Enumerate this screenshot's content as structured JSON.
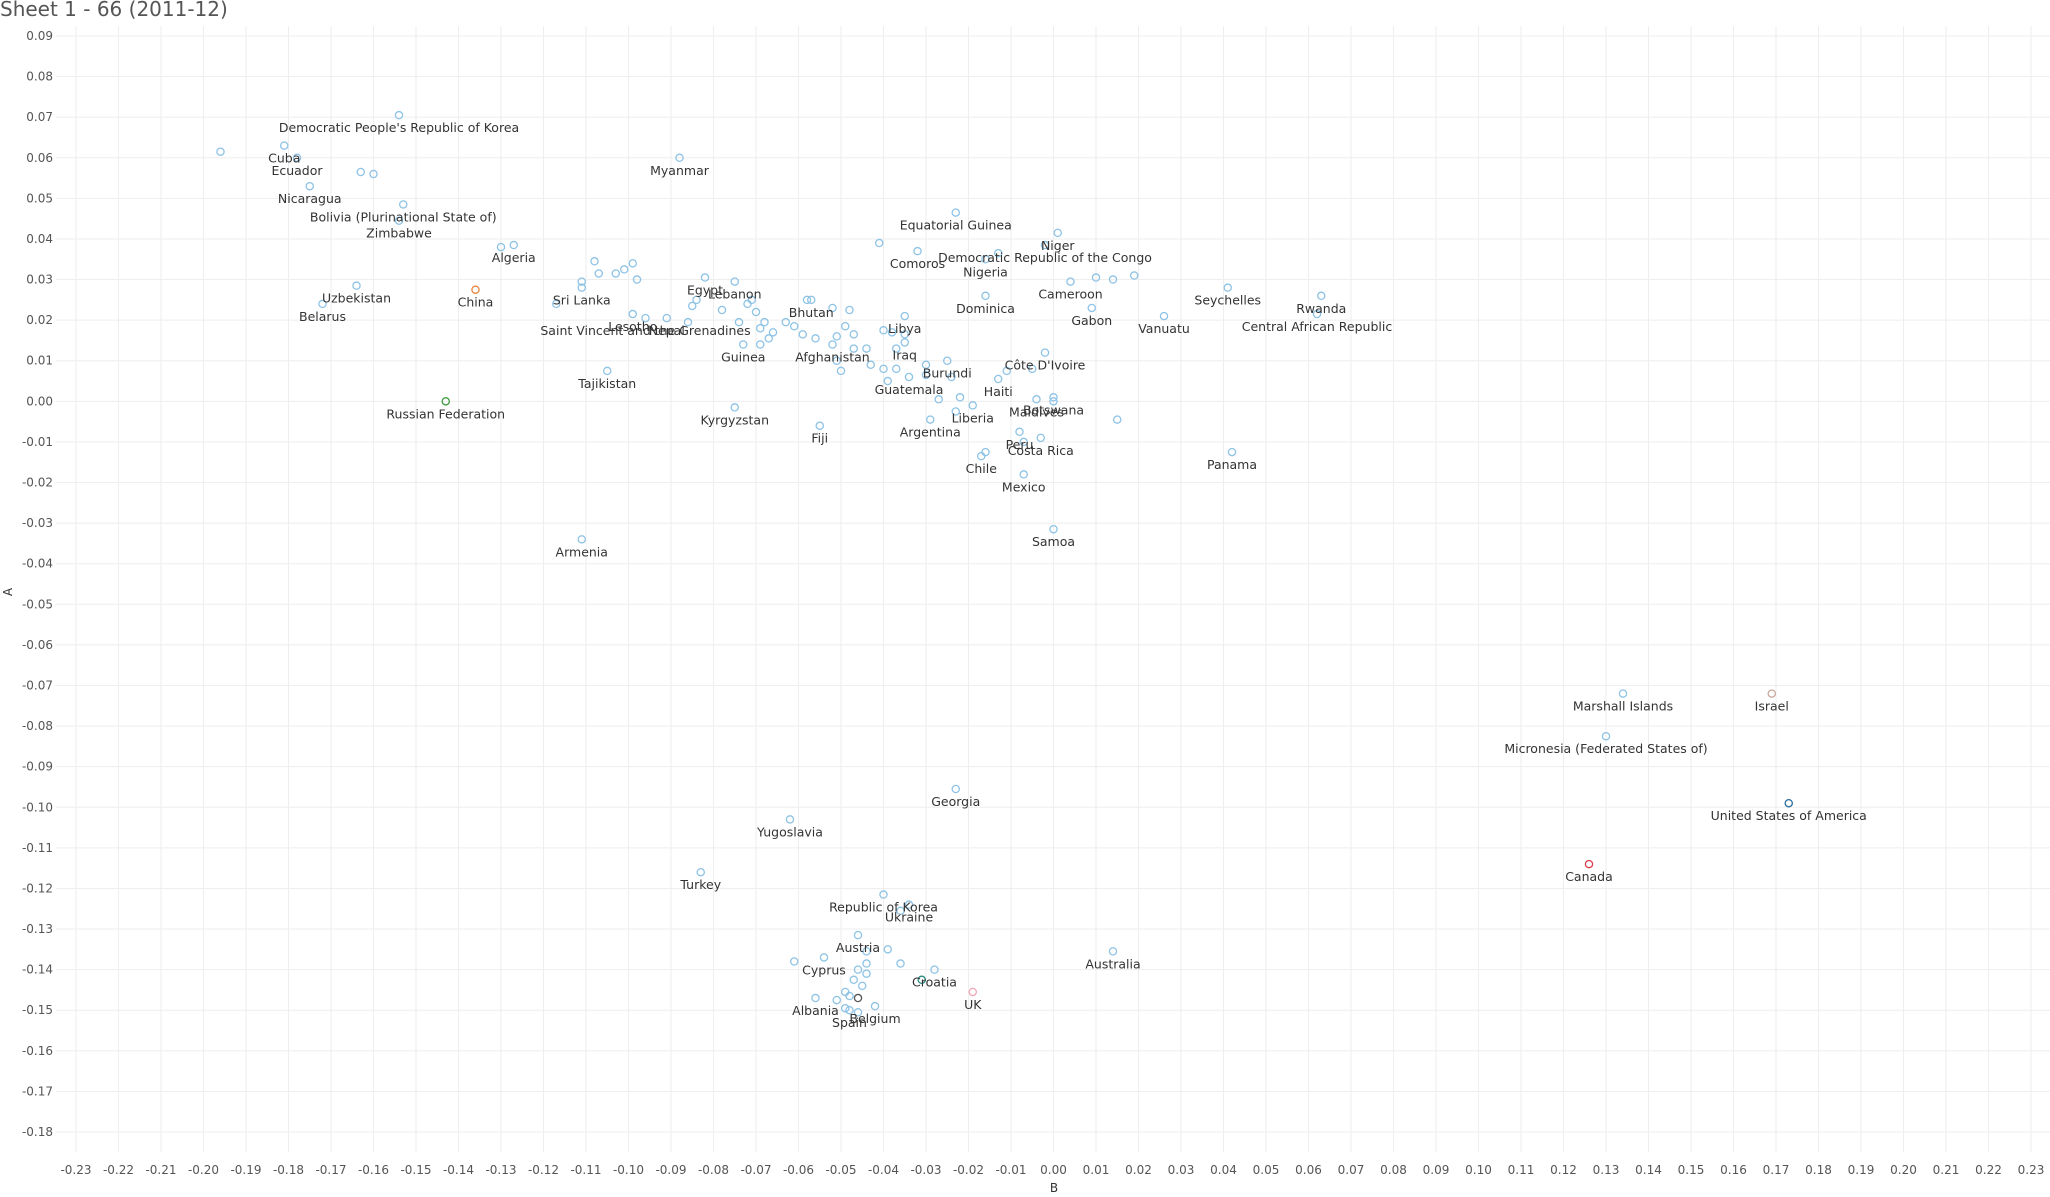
{
  "sheet": {
    "title": "Sheet 1 - 66 (2011-12)"
  },
  "chart_data": {
    "type": "scatter",
    "title": "Sheet 1 - 66 (2011-12)",
    "xlabel": "B",
    "ylabel": "A",
    "xlim": [
      -0.23,
      0.23
    ],
    "ylim": [
      -0.18,
      0.09
    ],
    "xstep": 0.01,
    "ystep": 0.01,
    "grid": true,
    "default_color": "#8ec3e6",
    "points": [
      {
        "label": "Democratic People's Republic of Korea",
        "x": -0.154,
        "y": 0.0705
      },
      {
        "label": "",
        "x": -0.196,
        "y": 0.0615
      },
      {
        "label": "Cuba",
        "x": -0.181,
        "y": 0.063
      },
      {
        "label": "Ecuador",
        "x": -0.178,
        "y": 0.06
      },
      {
        "label": "",
        "x": -0.163,
        "y": 0.0565
      },
      {
        "label": "",
        "x": -0.16,
        "y": 0.056
      },
      {
        "label": "Nicaragua",
        "x": -0.175,
        "y": 0.053
      },
      {
        "label": "Bolivia (Plurinational State of)",
        "x": -0.153,
        "y": 0.0485
      },
      {
        "label": "Zimbabwe",
        "x": -0.154,
        "y": 0.0445
      },
      {
        "label": "Myanmar",
        "x": -0.088,
        "y": 0.06
      },
      {
        "label": "Algeria",
        "x": -0.127,
        "y": 0.0385
      },
      {
        "label": "",
        "x": -0.13,
        "y": 0.038
      },
      {
        "label": "Uzbekistan",
        "x": -0.164,
        "y": 0.0285
      },
      {
        "label": "Belarus",
        "x": -0.172,
        "y": 0.024
      },
      {
        "label": "China",
        "x": -0.136,
        "y": 0.0275,
        "color": "#e8833a"
      },
      {
        "label": "Sri Lanka",
        "x": -0.111,
        "y": 0.028
      },
      {
        "label": "",
        "x": -0.108,
        "y": 0.0345
      },
      {
        "label": "",
        "x": -0.107,
        "y": 0.0315
      },
      {
        "label": "",
        "x": -0.111,
        "y": 0.0295
      },
      {
        "label": "",
        "x": -0.103,
        "y": 0.0315
      },
      {
        "label": "",
        "x": -0.101,
        "y": 0.0325
      },
      {
        "label": "",
        "x": -0.099,
        "y": 0.034
      },
      {
        "label": "",
        "x": -0.098,
        "y": 0.03
      },
      {
        "label": "",
        "x": -0.117,
        "y": 0.024
      },
      {
        "label": "Egypt",
        "x": -0.082,
        "y": 0.0305
      },
      {
        "label": "Lebanon",
        "x": -0.075,
        "y": 0.0295
      },
      {
        "label": "Lesotho",
        "x": -0.099,
        "y": 0.0215
      },
      {
        "label": "Saint Vincent and the Grenadines",
        "x": -0.096,
        "y": 0.0205
      },
      {
        "label": "Nepal",
        "x": -0.091,
        "y": 0.0205
      },
      {
        "label": "",
        "x": -0.085,
        "y": 0.0235
      },
      {
        "label": "",
        "x": -0.084,
        "y": 0.025
      },
      {
        "label": "",
        "x": -0.086,
        "y": 0.0195
      },
      {
        "label": "",
        "x": -0.078,
        "y": 0.0225
      },
      {
        "label": "",
        "x": -0.074,
        "y": 0.0195
      },
      {
        "label": "Bhutan",
        "x": -0.057,
        "y": 0.025
      },
      {
        "label": "",
        "x": -0.071,
        "y": 0.025
      },
      {
        "label": "",
        "x": -0.072,
        "y": 0.024
      },
      {
        "label": "",
        "x": -0.07,
        "y": 0.022
      },
      {
        "label": "",
        "x": -0.068,
        "y": 0.0195
      },
      {
        "label": "",
        "x": -0.069,
        "y": 0.018
      },
      {
        "label": "",
        "x": -0.066,
        "y": 0.017
      },
      {
        "label": "",
        "x": -0.067,
        "y": 0.0155
      },
      {
        "label": "Guinea",
        "x": -0.073,
        "y": 0.014
      },
      {
        "label": "",
        "x": -0.069,
        "y": 0.014
      },
      {
        "label": "",
        "x": -0.063,
        "y": 0.0195
      },
      {
        "label": "",
        "x": -0.061,
        "y": 0.0185
      },
      {
        "label": "",
        "x": -0.059,
        "y": 0.0165
      },
      {
        "label": "",
        "x": -0.056,
        "y": 0.0155
      },
      {
        "label": "",
        "x": -0.058,
        "y": 0.025
      },
      {
        "label": "Afghanistan",
        "x": -0.052,
        "y": 0.014
      },
      {
        "label": "",
        "x": -0.051,
        "y": 0.016
      },
      {
        "label": "",
        "x": -0.052,
        "y": 0.023
      },
      {
        "label": "",
        "x": -0.048,
        "y": 0.0225
      },
      {
        "label": "",
        "x": -0.049,
        "y": 0.0185
      },
      {
        "label": "",
        "x": -0.047,
        "y": 0.0165
      },
      {
        "label": "",
        "x": -0.047,
        "y": 0.013
      },
      {
        "label": "",
        "x": -0.044,
        "y": 0.013
      },
      {
        "label": "",
        "x": -0.051,
        "y": 0.01
      },
      {
        "label": "",
        "x": -0.05,
        "y": 0.0075
      },
      {
        "label": "",
        "x": -0.043,
        "y": 0.009
      },
      {
        "label": "Libya",
        "x": -0.035,
        "y": 0.021
      },
      {
        "label": "",
        "x": -0.04,
        "y": 0.0175
      },
      {
        "label": "",
        "x": -0.038,
        "y": 0.017
      },
      {
        "label": "",
        "x": -0.035,
        "y": 0.0165
      },
      {
        "label": "Iraq",
        "x": -0.035,
        "y": 0.0145
      },
      {
        "label": "",
        "x": -0.037,
        "y": 0.013
      },
      {
        "label": "",
        "x": -0.04,
        "y": 0.008
      },
      {
        "label": "",
        "x": -0.037,
        "y": 0.008
      },
      {
        "label": "",
        "x": -0.039,
        "y": 0.005
      },
      {
        "label": "Guatemala",
        "x": -0.034,
        "y": 0.006
      },
      {
        "label": "",
        "x": -0.03,
        "y": 0.009
      },
      {
        "label": "",
        "x": -0.03,
        "y": 0.0065
      },
      {
        "label": "Burundi",
        "x": -0.025,
        "y": 0.01
      },
      {
        "label": "",
        "x": -0.024,
        "y": 0.006
      },
      {
        "label": "Equatorial Guinea",
        "x": -0.023,
        "y": 0.0465
      },
      {
        "label": "Comoros",
        "x": -0.032,
        "y": 0.037
      },
      {
        "label": "",
        "x": -0.041,
        "y": 0.039
      },
      {
        "label": "Nigeria",
        "x": -0.016,
        "y": 0.035
      },
      {
        "label": "",
        "x": -0.013,
        "y": 0.0365
      },
      {
        "label": "Dominica",
        "x": -0.016,
        "y": 0.026
      },
      {
        "label": "Haiti",
        "x": -0.013,
        "y": 0.0055
      },
      {
        "label": "",
        "x": -0.011,
        "y": 0.0075
      },
      {
        "label": "",
        "x": -0.005,
        "y": 0.008
      },
      {
        "label": "Liberia",
        "x": -0.019,
        "y": -0.001
      },
      {
        "label": "",
        "x": -0.023,
        "y": -0.0025
      },
      {
        "label": "",
        "x": -0.022,
        "y": 0.001
      },
      {
        "label": "",
        "x": -0.027,
        "y": 0.0005
      },
      {
        "label": "Argentina",
        "x": -0.029,
        "y": -0.0045
      },
      {
        "label": "Peru",
        "x": -0.008,
        "y": -0.0075
      },
      {
        "label": "",
        "x": -0.007,
        "y": -0.01
      },
      {
        "label": "Chile",
        "x": -0.017,
        "y": -0.0135
      },
      {
        "label": "",
        "x": -0.016,
        "y": -0.0125
      },
      {
        "label": "Costa Rica",
        "x": -0.003,
        "y": -0.009
      },
      {
        "label": "Mexico",
        "x": -0.007,
        "y": -0.018
      },
      {
        "label": "Niger",
        "x": 0.001,
        "y": 0.0415
      },
      {
        "label": "Democratic Republic of the Congo",
        "x": -0.002,
        "y": 0.0385
      },
      {
        "label": "Cameroon",
        "x": 0.004,
        "y": 0.0295
      },
      {
        "label": "",
        "x": 0.01,
        "y": 0.0305
      },
      {
        "label": "",
        "x": 0.014,
        "y": 0.03
      },
      {
        "label": "",
        "x": 0.019,
        "y": 0.031
      },
      {
        "label": "Gabon",
        "x": 0.009,
        "y": 0.023
      },
      {
        "label": "Côte D'Ivoire",
        "x": -0.002,
        "y": 0.012
      },
      {
        "label": "Botswana",
        "x": 0.0,
        "y": 0.001
      },
      {
        "label": "Maldives",
        "x": -0.004,
        "y": 0.0005
      },
      {
        "label": "",
        "x": 0.0,
        "y": 0.0
      },
      {
        "label": "",
        "x": 0.015,
        "y": -0.0045
      },
      {
        "label": "Samoa",
        "x": 0.0,
        "y": -0.0315
      },
      {
        "label": "Vanuatu",
        "x": 0.026,
        "y": 0.021
      },
      {
        "label": "Seychelles",
        "x": 0.041,
        "y": 0.028
      },
      {
        "label": "Rwanda",
        "x": 0.063,
        "y": 0.026
      },
      {
        "label": "Central African Republic",
        "x": 0.062,
        "y": 0.0215
      },
      {
        "label": "Panama",
        "x": 0.042,
        "y": -0.0125
      },
      {
        "label": "Kyrgyzstan",
        "x": -0.075,
        "y": -0.0015
      },
      {
        "label": "Fiji",
        "x": -0.055,
        "y": -0.006
      },
      {
        "label": "Tajikistan",
        "x": -0.105,
        "y": 0.0075
      },
      {
        "label": "Russian Federation",
        "x": -0.143,
        "y": 0.0,
        "color": "#3a9a3a"
      },
      {
        "label": "Armenia",
        "x": -0.111,
        "y": -0.034
      },
      {
        "label": "Marshall Islands",
        "x": 0.134,
        "y": -0.072
      },
      {
        "label": "Israel",
        "x": 0.169,
        "y": -0.072,
        "color": "#c9a9a0"
      },
      {
        "label": "Micronesia (Federated States of)",
        "x": 0.13,
        "y": -0.0825
      },
      {
        "label": "United States of America",
        "x": 0.173,
        "y": -0.099,
        "color": "#2b6e9f"
      },
      {
        "label": "Canada",
        "x": 0.126,
        "y": -0.114,
        "color": "#d9404a"
      },
      {
        "label": "Georgia",
        "x": -0.023,
        "y": -0.0955
      },
      {
        "label": "Yugoslavia",
        "x": -0.062,
        "y": -0.103
      },
      {
        "label": "Turkey",
        "x": -0.083,
        "y": -0.116
      },
      {
        "label": "Republic of Korea",
        "x": -0.04,
        "y": -0.1215
      },
      {
        "label": "Ukraine",
        "x": -0.034,
        "y": -0.124
      },
      {
        "label": "",
        "x": -0.036,
        "y": -0.1255
      },
      {
        "label": "Austria",
        "x": -0.046,
        "y": -0.1315
      },
      {
        "label": "",
        "x": -0.044,
        "y": -0.1355
      },
      {
        "label": "",
        "x": -0.039,
        "y": -0.135
      },
      {
        "label": "",
        "x": -0.036,
        "y": -0.1385
      },
      {
        "label": "",
        "x": -0.044,
        "y": -0.1385
      },
      {
        "label": "Cyprus",
        "x": -0.054,
        "y": -0.137
      },
      {
        "label": "",
        "x": -0.061,
        "y": -0.138
      },
      {
        "label": "",
        "x": -0.046,
        "y": -0.14
      },
      {
        "label": "",
        "x": -0.044,
        "y": -0.141
      },
      {
        "label": "",
        "x": -0.047,
        "y": -0.1425
      },
      {
        "label": "",
        "x": -0.045,
        "y": -0.144
      },
      {
        "label": "",
        "x": -0.049,
        "y": -0.1455
      },
      {
        "label": "",
        "x": -0.048,
        "y": -0.1465
      },
      {
        "label": "",
        "x": -0.051,
        "y": -0.1475
      },
      {
        "label": "Albania",
        "x": -0.056,
        "y": -0.147
      },
      {
        "label": "",
        "x": -0.046,
        "y": -0.147,
        "color": "#555555"
      },
      {
        "label": "",
        "x": -0.049,
        "y": -0.1495
      },
      {
        "label": "Spain",
        "x": -0.048,
        "y": -0.15
      },
      {
        "label": "",
        "x": -0.046,
        "y": -0.1505
      },
      {
        "label": "Belgium",
        "x": -0.042,
        "y": -0.149
      },
      {
        "label": "Croatia",
        "x": -0.028,
        "y": -0.14
      },
      {
        "label": "",
        "x": -0.031,
        "y": -0.1425,
        "color": "#2a8a80"
      },
      {
        "label": "UK",
        "x": -0.019,
        "y": -0.1455,
        "color": "#f0a8b4"
      },
      {
        "label": "Australia",
        "x": 0.014,
        "y": -0.1355
      }
    ]
  }
}
